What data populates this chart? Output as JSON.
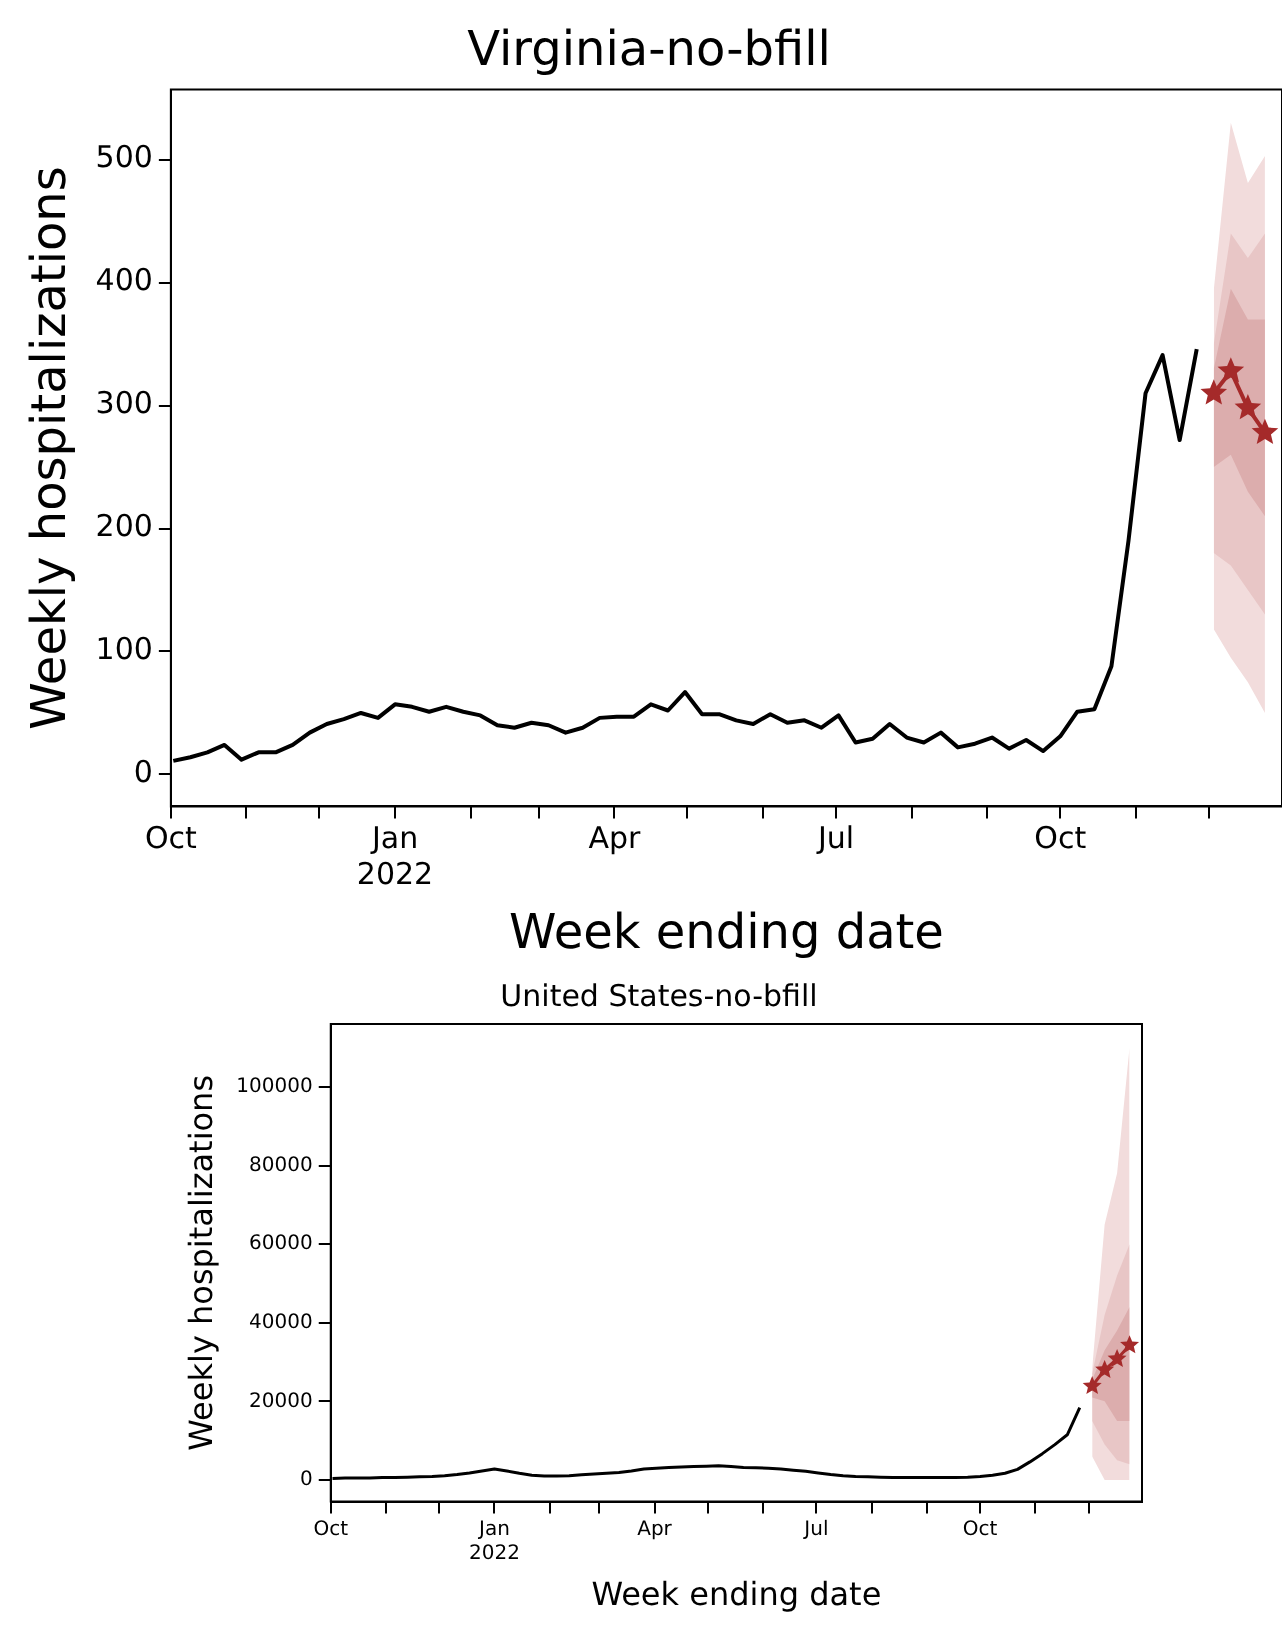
{
  "chart_data": [
    {
      "type": "line",
      "title": "Virginia-no-bfill",
      "xlabel": "Week ending date",
      "ylabel": "Weekly hospitalizations",
      "x": [
        "2021-10-02",
        "2021-10-09",
        "2021-10-16",
        "2021-10-23",
        "2021-10-30",
        "2021-11-06",
        "2021-11-13",
        "2021-11-20",
        "2021-11-27",
        "2021-12-04",
        "2021-12-11",
        "2021-12-18",
        "2021-12-25",
        "2022-01-01",
        "2022-01-08",
        "2022-01-15",
        "2022-01-22",
        "2022-01-29",
        "2022-02-05",
        "2022-02-12",
        "2022-02-19",
        "2022-02-26",
        "2022-03-05",
        "2022-03-12",
        "2022-03-19",
        "2022-03-26",
        "2022-04-02",
        "2022-04-09",
        "2022-04-16",
        "2022-04-23",
        "2022-04-30",
        "2022-05-07",
        "2022-05-14",
        "2022-05-21",
        "2022-05-28",
        "2022-06-04",
        "2022-06-11",
        "2022-06-18",
        "2022-06-25",
        "2022-07-02",
        "2022-07-09",
        "2022-07-16",
        "2022-07-23",
        "2022-07-30",
        "2022-08-06",
        "2022-08-13",
        "2022-08-20",
        "2022-08-27",
        "2022-09-03",
        "2022-09-10",
        "2022-09-17",
        "2022-09-24",
        "2022-10-01",
        "2022-10-08",
        "2022-10-15",
        "2022-10-22",
        "2022-10-29",
        "2022-11-05",
        "2022-11-12",
        "2022-11-19",
        "2022-11-26"
      ],
      "series": [
        {
          "color": "#000000",
          "values": [
            11,
            14,
            18,
            24,
            12,
            18,
            18,
            24,
            34,
            41,
            45,
            50,
            46,
            57,
            55,
            51,
            55,
            51,
            48,
            40,
            38,
            42,
            40,
            34,
            38,
            46,
            47,
            47,
            57,
            52,
            67,
            49,
            49,
            44,
            41,
            49,
            42,
            44,
            38,
            48,
            26,
            29,
            41,
            30,
            26,
            34,
            22,
            25,
            30,
            21,
            28,
            19,
            31,
            51,
            53,
            88,
            190,
            310,
            341,
            272,
            346
          ]
        },
        {
          "color": "#f2dcdc",
          "x": [
            "2022-12-03",
            "2022-12-10",
            "2022-12-17",
            "2022-12-24"
          ],
          "values": [
            null,
            null,
            null,
            null
          ],
          "lower": [
            118,
            95,
            75,
            50
          ],
          "upper": [
            394,
            530,
            481,
            503
          ]
        },
        {
          "color": "#e8c6c6",
          "x": [
            "2022-12-03",
            "2022-12-10",
            "2022-12-17",
            "2022-12-24"
          ],
          "values": [
            null,
            null,
            null,
            null
          ],
          "lower": [
            180,
            170,
            150,
            130
          ],
          "upper": [
            350,
            440,
            420,
            440
          ]
        },
        {
          "color": "#dcadad",
          "x": [
            "2022-12-03",
            "2022-12-10",
            "2022-12-17",
            "2022-12-24"
          ],
          "values": [
            null,
            null,
            null,
            null
          ],
          "lower": [
            250,
            260,
            230,
            210
          ],
          "upper": [
            330,
            395,
            370,
            370
          ]
        },
        {
          "color": "#a52a2a",
          "marker": "star",
          "x": [
            "2022-12-03",
            "2022-12-10",
            "2022-12-17",
            "2022-12-24"
          ],
          "values": [
            310,
            328,
            298,
            278
          ]
        }
      ],
      "xlim": [
        "2021-10-01",
        "2022-12-31"
      ],
      "xticks": [
        {
          "value": "2021-10-01",
          "label": "Oct"
        },
        {
          "value": "2021-11-01",
          "label": null
        },
        {
          "value": "2021-12-01",
          "label": null
        },
        {
          "value": "2022-01-01",
          "label": "Jan\n2022"
        },
        {
          "value": "2022-02-01",
          "label": null
        },
        {
          "value": "2022-03-01",
          "label": null
        },
        {
          "value": "2022-04-01",
          "label": "Apr"
        },
        {
          "value": "2022-05-01",
          "label": null
        },
        {
          "value": "2022-06-01",
          "label": null
        },
        {
          "value": "2022-07-01",
          "label": "Jul"
        },
        {
          "value": "2022-08-01",
          "label": null
        },
        {
          "value": "2022-09-01",
          "label": null
        },
        {
          "value": "2022-10-01",
          "label": "Oct"
        },
        {
          "value": "2022-11-01",
          "label": null
        },
        {
          "value": "2022-12-01",
          "label": null
        }
      ],
      "ylim": [
        -26,
        557
      ],
      "yticks": [
        0,
        100,
        200,
        300,
        400,
        500
      ],
      "grid": false,
      "legend": false
    },
    {
      "type": "line",
      "title": "United States-no-bfill",
      "xlabel": "Week ending date",
      "ylabel": "Weekly hospitalizations",
      "x": [
        "2021-10-02",
        "2021-10-09",
        "2021-10-16",
        "2021-10-23",
        "2021-10-30",
        "2021-11-06",
        "2021-11-13",
        "2021-11-20",
        "2021-11-27",
        "2021-12-04",
        "2021-12-11",
        "2021-12-18",
        "2021-12-25",
        "2022-01-01",
        "2022-01-08",
        "2022-01-15",
        "2022-01-22",
        "2022-01-29",
        "2022-02-05",
        "2022-02-12",
        "2022-02-19",
        "2022-02-26",
        "2022-03-05",
        "2022-03-12",
        "2022-03-19",
        "2022-03-26",
        "2022-04-02",
        "2022-04-09",
        "2022-04-16",
        "2022-04-23",
        "2022-04-30",
        "2022-05-07",
        "2022-05-14",
        "2022-05-21",
        "2022-05-28",
        "2022-06-04",
        "2022-06-11",
        "2022-06-18",
        "2022-06-25",
        "2022-07-02",
        "2022-07-09",
        "2022-07-16",
        "2022-07-23",
        "2022-07-30",
        "2022-08-06",
        "2022-08-13",
        "2022-08-20",
        "2022-08-27",
        "2022-09-03",
        "2022-09-10",
        "2022-09-17",
        "2022-09-24",
        "2022-10-01",
        "2022-10-08",
        "2022-10-15",
        "2022-10-22",
        "2022-10-29",
        "2022-11-05",
        "2022-11-12",
        "2022-11-19",
        "2022-11-26"
      ],
      "series": [
        {
          "color": "#000000",
          "values": [
            400,
            500,
            500,
            500,
            600,
            600,
            700,
            800,
            900,
            1100,
            1400,
            1800,
            2300,
            2800,
            2300,
            1700,
            1200,
            1000,
            1000,
            1100,
            1300,
            1500,
            1700,
            1900,
            2300,
            2800,
            3000,
            3200,
            3300,
            3400,
            3500,
            3600,
            3400,
            3200,
            3100,
            3000,
            2800,
            2500,
            2200,
            1800,
            1400,
            1100,
            900,
            800,
            700,
            600,
            600,
            600,
            600,
            600,
            600,
            700,
            900,
            1200,
            1700,
            2700,
            4600,
            6700,
            9000,
            11500,
            18400
          ]
        },
        {
          "color": "#f2dcdc",
          "x": [
            "2022-12-03",
            "2022-12-10",
            "2022-12-17",
            "2022-12-24"
          ],
          "values": [
            null,
            null,
            null,
            null
          ],
          "lower": [
            6000,
            0,
            0,
            0
          ],
          "upper": [
            28400,
            65000,
            78000,
            110000
          ]
        },
        {
          "color": "#e8c6c6",
          "x": [
            "2022-12-03",
            "2022-12-10",
            "2022-12-17",
            "2022-12-24"
          ],
          "values": [
            null,
            null,
            null,
            null
          ],
          "lower": [
            15000,
            9000,
            5000,
            4000
          ],
          "upper": [
            27000,
            42000,
            52000,
            60000
          ]
        },
        {
          "color": "#dcadad",
          "x": [
            "2022-12-03",
            "2022-12-10",
            "2022-12-17",
            "2022-12-24"
          ],
          "values": [
            null,
            null,
            null,
            null
          ],
          "lower": [
            21000,
            20000,
            15000,
            15000
          ],
          "upper": [
            25500,
            33000,
            38000,
            44000
          ]
        },
        {
          "color": "#a52a2a",
          "marker": "star",
          "x": [
            "2022-12-03",
            "2022-12-10",
            "2022-12-17",
            "2022-12-24"
          ],
          "values": [
            23900,
            28000,
            30800,
            34300
          ]
        }
      ],
      "xlim": [
        "2021-10-01",
        "2022-12-31"
      ],
      "xticks": [
        {
          "value": "2021-10-01",
          "label": "Oct"
        },
        {
          "value": "2021-11-01",
          "label": null
        },
        {
          "value": "2021-12-01",
          "label": null
        },
        {
          "value": "2022-01-01",
          "label": "Jan\n2022"
        },
        {
          "value": "2022-02-01",
          "label": null
        },
        {
          "value": "2022-03-01",
          "label": null
        },
        {
          "value": "2022-04-01",
          "label": "Apr"
        },
        {
          "value": "2022-05-01",
          "label": null
        },
        {
          "value": "2022-06-01",
          "label": null
        },
        {
          "value": "2022-07-01",
          "label": "Jul"
        },
        {
          "value": "2022-08-01",
          "label": null
        },
        {
          "value": "2022-09-01",
          "label": null
        },
        {
          "value": "2022-10-01",
          "label": "Oct"
        },
        {
          "value": "2022-11-01",
          "label": null
        },
        {
          "value": "2022-12-01",
          "label": null
        }
      ],
      "ylim": [
        -5500,
        116000
      ],
      "yticks": [
        0,
        20000,
        40000,
        60000,
        80000,
        100000
      ],
      "grid": false,
      "legend": false
    }
  ]
}
